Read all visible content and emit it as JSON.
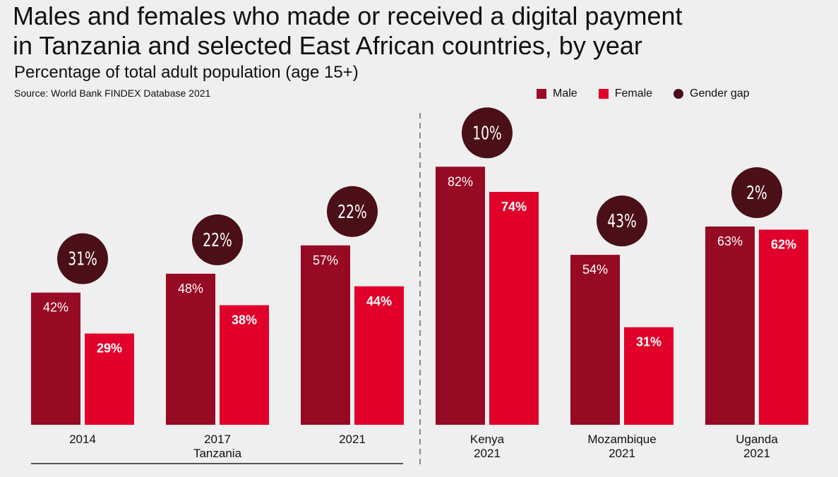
{
  "title_line1": "Males and females who made or received a digital payment",
  "title_line2": "in Tanzania and selected East African countries, by year",
  "subtitle": "Percentage of total adult population (age 15+)",
  "source": "Source: World Bank FINDEX Database 2021",
  "colors": {
    "male": "#970a24",
    "female": "#e0002a",
    "gap": "#4a0f17",
    "background": "#efefef"
  },
  "chart_data": {
    "type": "bar",
    "title": "Males and females who made or received a digital payment in Tanzania and selected East African countries, by year",
    "subtitle": "Percentage of total adult population (age 15+)",
    "ylim": [
      0,
      100
    ],
    "grid": false,
    "legend": "top-right",
    "legend_entries": [
      "Male",
      "Female",
      "Gender gap"
    ],
    "groups": [
      {
        "category": "2014",
        "sublabel": "",
        "male": 42,
        "female": 29,
        "gap": 31,
        "male_label": "42%",
        "female_label": "29%",
        "gap_label": "31%"
      },
      {
        "category": "2017",
        "sublabel": "Tanzania",
        "male": 48,
        "female": 38,
        "gap": 22,
        "male_label": "48%",
        "female_label": "38%",
        "gap_label": "22%"
      },
      {
        "category": "2021",
        "sublabel": "",
        "male": 57,
        "female": 44,
        "gap": 22,
        "male_label": "57%",
        "female_label": "44%",
        "gap_label": "22%"
      },
      {
        "category": "Kenya",
        "sublabel": "2021",
        "male": 82,
        "female": 74,
        "gap": 10,
        "male_label": "82%",
        "female_label": "74%",
        "gap_label": "10%"
      },
      {
        "category": "Mozambique",
        "sublabel": "2021",
        "male": 54,
        "female": 31,
        "gap": 43,
        "male_label": "54%",
        "female_label": "31%",
        "gap_label": "43%"
      },
      {
        "category": "Uganda",
        "sublabel": "2021",
        "male": 63,
        "female": 62,
        "gap": 2,
        "male_label": "63%",
        "female_label": "62%",
        "gap_label": "2%"
      }
    ],
    "series": [
      {
        "name": "Male",
        "values": [
          42,
          48,
          57,
          82,
          54,
          63
        ]
      },
      {
        "name": "Female",
        "values": [
          29,
          38,
          44,
          74,
          31,
          62
        ]
      },
      {
        "name": "Gender gap",
        "values": [
          31,
          22,
          22,
          10,
          43,
          2
        ]
      }
    ]
  },
  "legend": {
    "male": "Male",
    "female": "Female",
    "gap": "Gender gap"
  }
}
